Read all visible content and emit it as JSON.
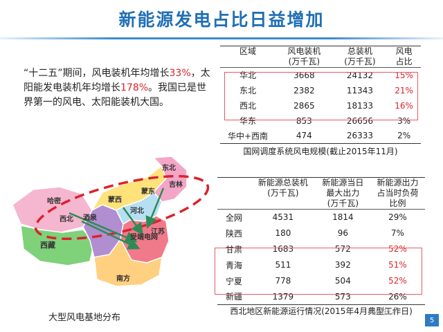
{
  "title": "新能源发电占比日益增加",
  "intro": {
    "p1": "“十二五”期间，风电装机年均增长",
    "v1": "33%",
    "p2": "，太阳能发电装机年均增长",
    "v2": "178%",
    "p3": "。我国已是世界第一的风电、太阳能装机大国。"
  },
  "map": {
    "caption": "大型风电基地分布",
    "regions": {
      "xinjiang_label": "哈密",
      "jiuquan_label": "酒泉",
      "xibei_label": "西北",
      "xizang_label": "西藏",
      "menggu_label": "蒙西",
      "mengdong_label": "蒙东",
      "hebei_label": "河北",
      "dongbei_label": "东北",
      "jilin_label": "吉林",
      "jiangsu_label": "江苏",
      "shouduan_label": "受端电网",
      "nanfang_label": "南方",
      "huabei_label": "华北"
    },
    "colors": {
      "xinjiang": "#f5b6cf",
      "xizang": "#7fd17a",
      "xibei": "#b08ed0",
      "neimenggu": "#ffe27a",
      "dongbei": "#f3a6c8",
      "huabei": "#b7dff2",
      "huadong": "#f07a8a",
      "nanfang": "#ffd080",
      "arrow": "#2e8b57",
      "ellipse": "#d9232d"
    }
  },
  "table1": {
    "headers": [
      "区域",
      "风电装机\n(万千瓦)",
      "总装机\n(万千瓦)",
      "风电\n占比"
    ],
    "header_lines": [
      [
        "区域",
        ""
      ],
      [
        "风电装机",
        "(万千瓦)"
      ],
      [
        "总装机",
        "(万千瓦)"
      ],
      [
        "风电",
        "占比"
      ]
    ],
    "rows": [
      {
        "region": "华北",
        "wind": "3668",
        "total": "24132",
        "share": "15%"
      },
      {
        "region": "东北",
        "wind": "2382",
        "total": "11343",
        "share": "21%"
      },
      {
        "region": "西北",
        "wind": "2865",
        "total": "18133",
        "share": "16%"
      },
      {
        "region": "华东",
        "wind": "853",
        "total": "26656",
        "share": "3%"
      },
      {
        "region": "华中+西南",
        "wind": "474",
        "total": "26333",
        "share": "2%"
      }
    ],
    "caption": "国网调度系统风电规模(截止2015年11月)"
  },
  "table2": {
    "header_lines": [
      [
        "",
        "",
        ""
      ],
      [
        "新能源总装机",
        "(万千瓦)",
        ""
      ],
      [
        "新能源当日",
        "最大出力",
        "(万千瓦)"
      ],
      [
        "新能源出力",
        "占当时负荷",
        "比例"
      ]
    ],
    "rows": [
      {
        "region": "全网",
        "capacity": "4531",
        "max_output": "1814",
        "share": "29%"
      },
      {
        "region": "陕西",
        "capacity": "180",
        "max_output": "96",
        "share": "7%"
      },
      {
        "region": "甘肃",
        "capacity": "1683",
        "max_output": "572",
        "share": "52%"
      },
      {
        "region": "青海",
        "capacity": "511",
        "max_output": "392",
        "share": "51%"
      },
      {
        "region": "宁夏",
        "capacity": "778",
        "max_output": "504",
        "share": "52%"
      },
      {
        "region": "新疆",
        "capacity": "1379",
        "max_output": "573",
        "share": "26%"
      }
    ],
    "caption": "西北地区新能源运行情况(2015年4月典型工作日)"
  },
  "watermark": "电网技术",
  "page_number": "5"
}
